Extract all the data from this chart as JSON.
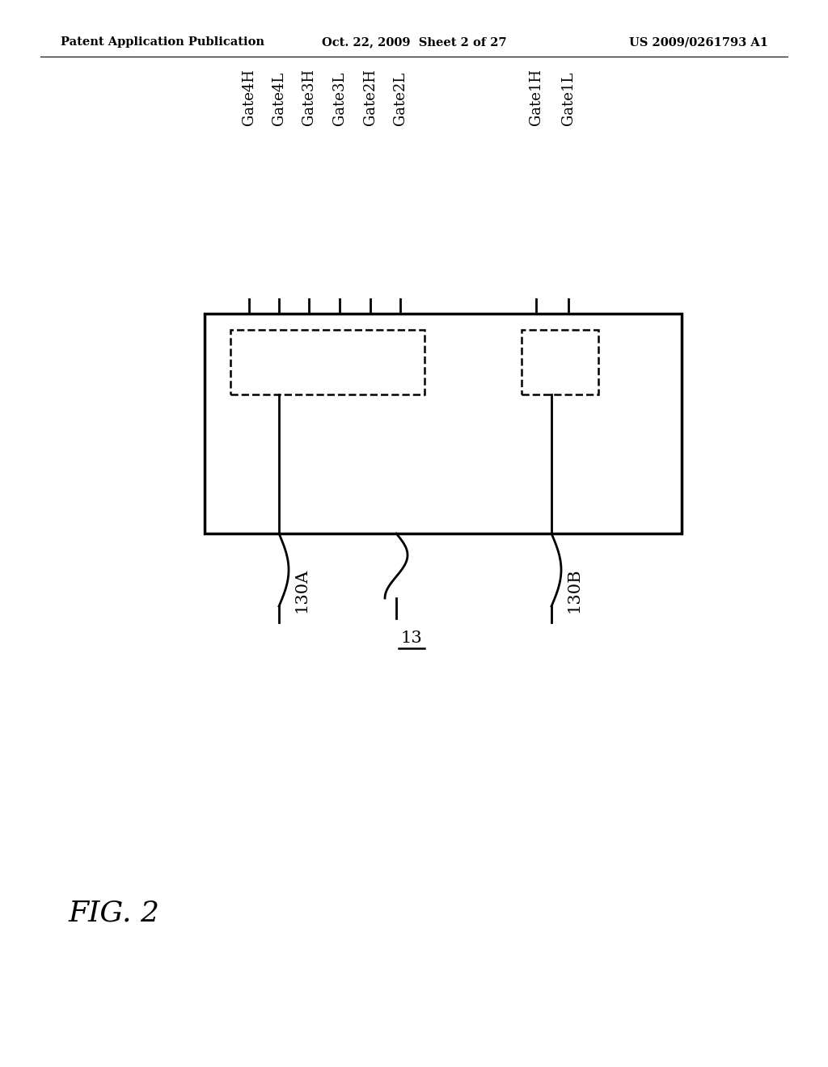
{
  "background_color": "#ffffff",
  "header_left": "Patent Application Publication",
  "header_center": "Oct. 22, 2009  Sheet 2 of 27",
  "header_right": "US 2009/0261793 A1",
  "fig_label": "FIG. 2",
  "gate_labels_left": [
    "Gate4H",
    "Gate4L",
    "Gate3H",
    "Gate3L",
    "Gate2H",
    "Gate2L"
  ],
  "gate_labels_right": [
    "Gate1H",
    "Gate1L"
  ],
  "label_130A": "130A",
  "label_13": "13",
  "label_130B": "130B",
  "line_color": "#000000",
  "text_color": "#000000"
}
